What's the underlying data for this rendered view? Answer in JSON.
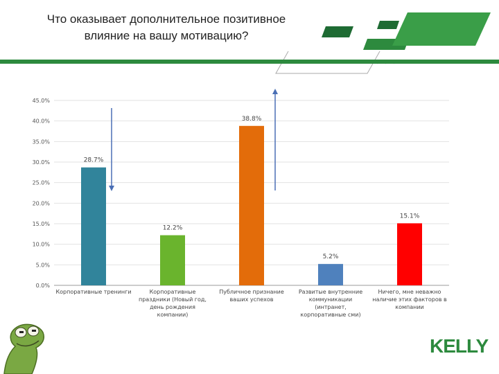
{
  "header": {
    "title_line1": "Что оказывает дополнительное позитивное",
    "title_line2": "влияние на вашу мотивацию?"
  },
  "logo": {
    "text": "KELLY",
    "color": "#2d8a3e"
  },
  "chart_data": {
    "type": "bar",
    "categories": [
      [
        "Корпоративные тренинги"
      ],
      [
        "Корпоративные",
        "праздники (Новый год,",
        "день рождения",
        "компании)"
      ],
      [
        "Публичное признание",
        "ваших успехов"
      ],
      [
        "Развитые внутренние",
        "коммуникации",
        "(интранет,",
        "корпоративные сми)"
      ],
      [
        "Ничего, мне неважно",
        "наличие этих факторов в",
        "компании"
      ]
    ],
    "values": [
      28.7,
      12.2,
      38.8,
      5.2,
      15.1
    ],
    "value_labels": [
      "28.7%",
      "12.2%",
      "38.8%",
      "5.2%",
      "15.1%"
    ],
    "colors": [
      "#31849b",
      "#6ab42d",
      "#e36c0a",
      "#4f81bd",
      "#ff0000"
    ],
    "y_ticks": [
      "0.0%",
      "5.0%",
      "10.0%",
      "15.0%",
      "20.0%",
      "25.0%",
      "30.0%",
      "35.0%",
      "40.0%",
      "45.0%"
    ],
    "ylim": [
      0,
      45
    ],
    "grid": true,
    "annotations": [
      "arrow-down-over-first-bar",
      "arrow-up-over-third-bar"
    ],
    "arrow_color": "#4a6fb5"
  }
}
